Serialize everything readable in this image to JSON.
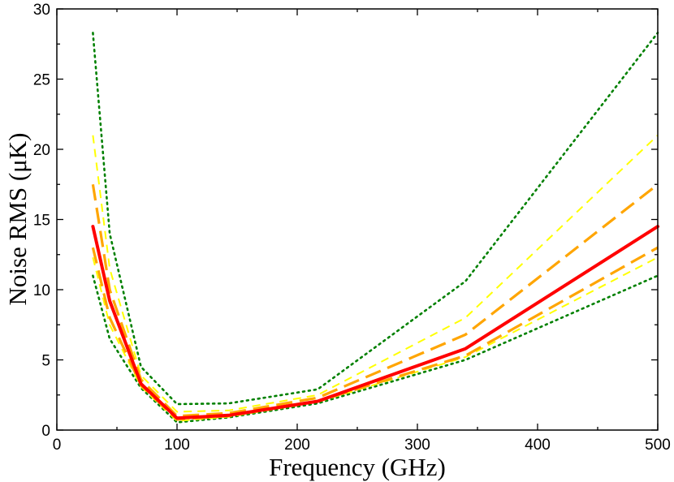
{
  "chart_data": {
    "type": "line",
    "title": "",
    "xlabel": "Frequency (GHz)",
    "ylabel": "Noise RMS (μK)",
    "xlim": [
      0,
      500
    ],
    "ylim": [
      0,
      30
    ],
    "xticks": [
      0,
      100,
      200,
      300,
      400,
      500
    ],
    "yticks": [
      0,
      5,
      10,
      15,
      20,
      25,
      30
    ],
    "grid": false,
    "legend": "none",
    "series": [
      {
        "name": "outer-upper-dotted",
        "color": "#008000",
        "style": "dotted",
        "x": [
          30,
          44,
          70,
          100,
          143,
          217,
          340,
          500
        ],
        "y": [
          28.3,
          14.0,
          4.5,
          1.85,
          1.9,
          2.9,
          10.6,
          28.3
        ]
      },
      {
        "name": "outer-lower-dotted",
        "color": "#008000",
        "style": "dotted",
        "x": [
          30,
          44,
          70,
          100,
          143,
          217,
          340,
          500
        ],
        "y": [
          11.0,
          6.5,
          3.0,
          0.55,
          0.9,
          1.9,
          5.0,
          11.0
        ]
      },
      {
        "name": "mid-upper-dashed",
        "color": "#ffff00",
        "style": "dashed",
        "x": [
          30,
          44,
          70,
          100,
          143,
          217,
          340,
          500
        ],
        "y": [
          21.0,
          11.5,
          3.9,
          1.3,
          1.4,
          2.5,
          8.0,
          21.0
        ]
      },
      {
        "name": "mid-lower-dashed",
        "color": "#ffff00",
        "style": "dashed",
        "x": [
          30,
          44,
          70,
          100,
          143,
          217,
          340,
          500
        ],
        "y": [
          12.3,
          7.5,
          3.1,
          0.65,
          0.95,
          2.0,
          5.2,
          12.3
        ]
      },
      {
        "name": "inner-upper-longdash",
        "color": "#ffa500",
        "style": "longdash",
        "x": [
          30,
          44,
          70,
          100,
          143,
          217,
          340,
          500
        ],
        "y": [
          17.5,
          10.0,
          3.6,
          1.0,
          1.2,
          2.3,
          6.8,
          17.5
        ]
      },
      {
        "name": "inner-lower-longdash",
        "color": "#ffa500",
        "style": "longdash",
        "x": [
          30,
          44,
          70,
          100,
          143,
          217,
          340,
          500
        ],
        "y": [
          13.0,
          8.0,
          3.2,
          0.75,
          1.0,
          2.05,
          5.3,
          13.0
        ]
      },
      {
        "name": "central-solid",
        "color": "#ff0000",
        "style": "solid",
        "x": [
          30,
          44,
          70,
          100,
          143,
          217,
          340,
          500
        ],
        "y": [
          14.5,
          9.2,
          3.3,
          0.85,
          1.05,
          2.05,
          5.8,
          14.5
        ]
      }
    ]
  }
}
